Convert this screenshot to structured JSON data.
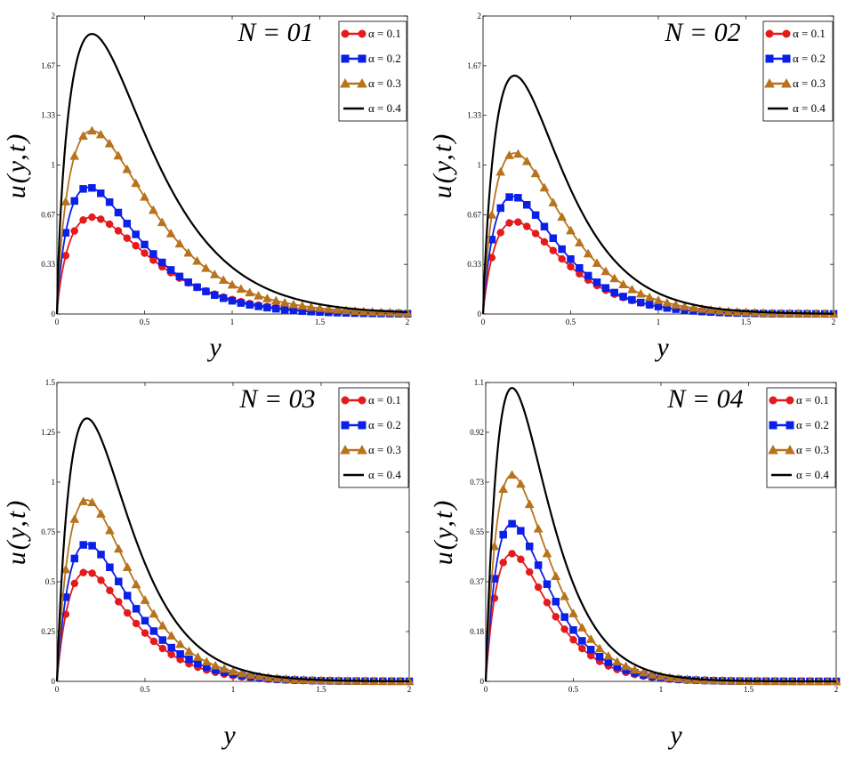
{
  "chart_data": [
    {
      "type": "line",
      "title": "N = 01",
      "xlabel": "y",
      "ylabel": "u(y,t)",
      "xlim": [
        0,
        2
      ],
      "ylim": [
        0,
        2
      ],
      "xticks": [
        "0",
        "0.5",
        "1",
        "1.5",
        "2"
      ],
      "yticks": [
        "0",
        "0.33",
        "0.67",
        "1",
        "1.33",
        "1.67",
        "2"
      ],
      "series": [
        {
          "name": "α = 0.1",
          "color": "#e41a1c",
          "marker": "circle",
          "peak": 0.65,
          "peak_y": 0.2,
          "decay": 0.55
        },
        {
          "name": "α = 0.2",
          "color": "#0a1fe8",
          "marker": "square",
          "peak": 0.85,
          "peak_y": 0.18,
          "decay": 0.55
        },
        {
          "name": "α = 0.3",
          "color": "#b8731c",
          "marker": "triangle",
          "peak": 1.23,
          "peak_y": 0.2,
          "decay": 0.58
        },
        {
          "name": "α = 0.4",
          "color": "#000000",
          "marker": "none",
          "peak": 1.88,
          "peak_y": 0.2,
          "decay": 0.6
        }
      ]
    },
    {
      "type": "line",
      "title": "N = 02",
      "xlabel": "y",
      "ylabel": "u(y,t)",
      "xlim": [
        0,
        2
      ],
      "ylim": [
        0,
        2
      ],
      "xticks": [
        "0",
        "0.5",
        "1",
        "1.5",
        "2"
      ],
      "yticks": [
        "0",
        "0.33",
        "0.67",
        "1",
        "1.33",
        "1.67",
        "2"
      ],
      "series": [
        {
          "name": "α = 0.1",
          "color": "#e41a1c",
          "marker": "circle",
          "peak": 0.62,
          "peak_y": 0.18,
          "decay": 0.45
        },
        {
          "name": "α = 0.2",
          "color": "#0a1fe8",
          "marker": "square",
          "peak": 0.79,
          "peak_y": 0.17,
          "decay": 0.45
        },
        {
          "name": "α = 0.3",
          "color": "#b8731c",
          "marker": "triangle",
          "peak": 1.08,
          "peak_y": 0.18,
          "decay": 0.47
        },
        {
          "name": "α = 0.4",
          "color": "#000000",
          "marker": "none",
          "peak": 1.6,
          "peak_y": 0.18,
          "decay": 0.48
        }
      ]
    },
    {
      "type": "line",
      "title": "N = 03",
      "xlabel": "y",
      "ylabel": "u(y,t)",
      "xlim": [
        0,
        2
      ],
      "ylim": [
        0,
        1.5
      ],
      "xticks": [
        "0",
        "0.5",
        "1",
        "1.5",
        "2"
      ],
      "yticks": [
        "0",
        "0.25",
        "0.5",
        "0.75",
        "1",
        "1.25",
        "1.5"
      ],
      "series": [
        {
          "name": "α = 0.1",
          "color": "#e41a1c",
          "marker": "circle",
          "peak": 0.55,
          "peak_y": 0.17,
          "decay": 0.38
        },
        {
          "name": "α = 0.2",
          "color": "#0a1fe8",
          "marker": "square",
          "peak": 0.69,
          "peak_y": 0.17,
          "decay": 0.38
        },
        {
          "name": "α = 0.3",
          "color": "#b8731c",
          "marker": "triangle",
          "peak": 0.91,
          "peak_y": 0.17,
          "decay": 0.4
        },
        {
          "name": "α = 0.4",
          "color": "#000000",
          "marker": "none",
          "peak": 1.32,
          "peak_y": 0.17,
          "decay": 0.4
        }
      ]
    },
    {
      "type": "line",
      "title": "N = 04",
      "xlabel": "y",
      "ylabel": "u(y,t)",
      "xlim": [
        0,
        2
      ],
      "ylim": [
        0,
        1.1
      ],
      "xticks": [
        "0",
        "0.5",
        "1",
        "1.5",
        "2"
      ],
      "yticks": [
        "0",
        "0.18",
        "0.37",
        "0.55",
        "0.73",
        "0.92",
        "1.1"
      ],
      "series": [
        {
          "name": "α = 0.1",
          "color": "#e41a1c",
          "marker": "circle",
          "peak": 0.47,
          "peak_y": 0.15,
          "decay": 0.33
        },
        {
          "name": "α = 0.2",
          "color": "#0a1fe8",
          "marker": "square",
          "peak": 0.58,
          "peak_y": 0.15,
          "decay": 0.33
        },
        {
          "name": "α = 0.3",
          "color": "#b8731c",
          "marker": "triangle",
          "peak": 0.76,
          "peak_y": 0.15,
          "decay": 0.34
        },
        {
          "name": "α = 0.4",
          "color": "#000000",
          "marker": "none",
          "peak": 1.08,
          "peak_y": 0.15,
          "decay": 0.35
        }
      ]
    }
  ]
}
